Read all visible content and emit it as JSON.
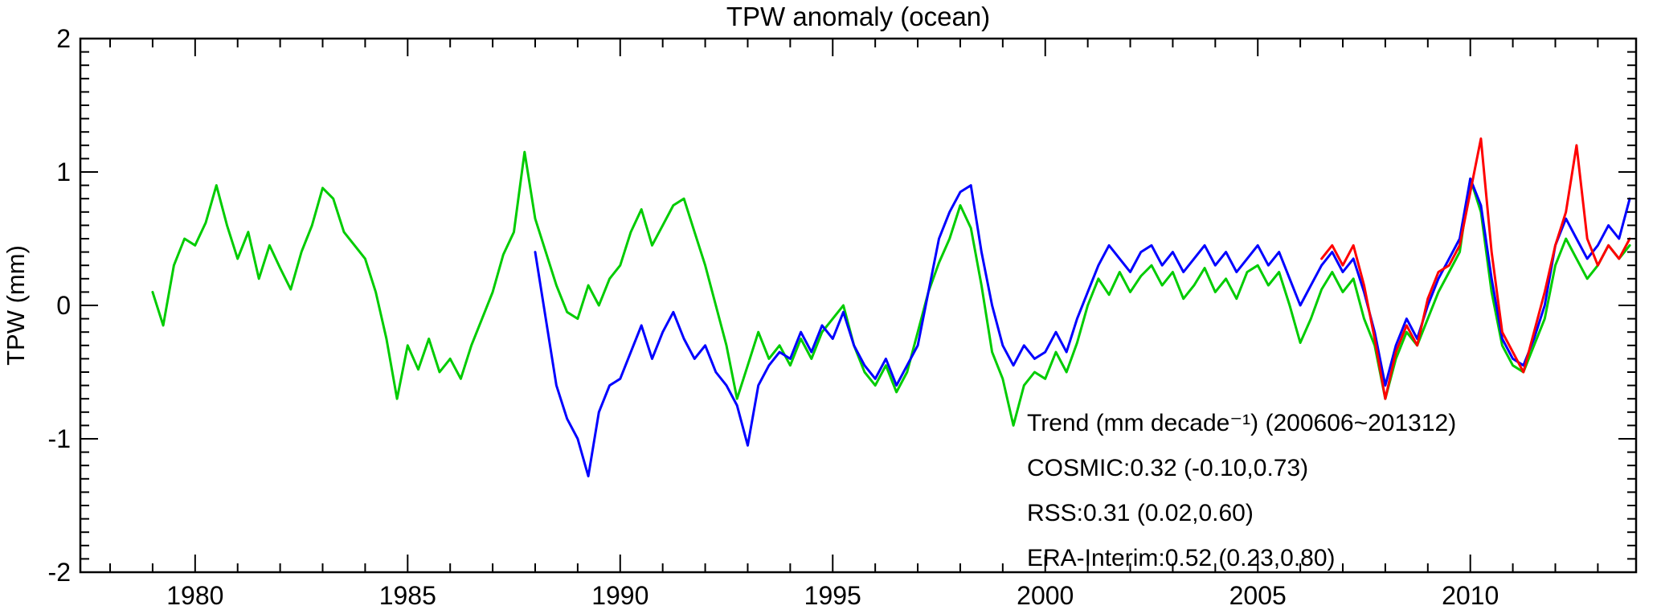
{
  "annotation": {
    "lines": [
      {
        "text": "Trend (mm decade⁻¹) (200606~201312)",
        "color": "#000000"
      },
      {
        "text": "COSMIC:0.32 (-0.10,0.73)",
        "color": "#FF0000"
      },
      {
        "text": "RSS:0.31 (0.02,0.60)",
        "color": "#0000FF"
      },
      {
        "text": "ERA-Interim:0.52 (0.23,0.80)",
        "color": "#00CC00"
      }
    ]
  },
  "chart_data": {
    "type": "line",
    "title": "TPW anomaly (ocean)",
    "xlabel": "",
    "ylabel": "TPW (mm)",
    "xlim": [
      1977.3,
      2013.9
    ],
    "ylim": [
      -2,
      2
    ],
    "grid": false,
    "x_major_ticks": [
      1980,
      1985,
      1990,
      1995,
      2000,
      2005,
      2010
    ],
    "x_minor_step": 1,
    "y_major_ticks": [
      -2,
      -1,
      0,
      1,
      2
    ],
    "y_minor_step": 0.1,
    "series": [
      {
        "name": "ERA-Interim",
        "color": "#00CC00",
        "start": 1979.0,
        "step": 0.25,
        "values": [
          0.1,
          -0.15,
          0.3,
          0.5,
          0.45,
          0.62,
          0.9,
          0.6,
          0.35,
          0.55,
          0.2,
          0.45,
          0.28,
          0.12,
          0.4,
          0.6,
          0.88,
          0.8,
          0.55,
          0.45,
          0.35,
          0.1,
          -0.25,
          -0.7,
          -0.3,
          -0.48,
          -0.25,
          -0.5,
          -0.4,
          -0.55,
          -0.3,
          -0.1,
          0.1,
          0.38,
          0.55,
          1.15,
          0.65,
          0.4,
          0.15,
          -0.05,
          -0.1,
          0.15,
          0.0,
          0.2,
          0.3,
          0.55,
          0.72,
          0.45,
          0.6,
          0.75,
          0.8,
          0.55,
          0.3,
          0.0,
          -0.3,
          -0.7,
          -0.45,
          -0.2,
          -0.4,
          -0.3,
          -0.45,
          -0.25,
          -0.4,
          -0.2,
          -0.1,
          0.0,
          -0.3,
          -0.5,
          -0.6,
          -0.45,
          -0.65,
          -0.5,
          -0.2,
          0.1,
          0.32,
          0.5,
          0.75,
          0.58,
          0.15,
          -0.35,
          -0.55,
          -0.9,
          -0.6,
          -0.5,
          -0.55,
          -0.35,
          -0.5,
          -0.28,
          0.0,
          0.2,
          0.08,
          0.25,
          0.1,
          0.22,
          0.3,
          0.15,
          0.25,
          0.05,
          0.15,
          0.28,
          0.1,
          0.2,
          0.05,
          0.25,
          0.3,
          0.15,
          0.25,
          0.0,
          -0.28,
          -0.1,
          0.12,
          0.25,
          0.1,
          0.2,
          -0.1,
          -0.3,
          -0.7,
          -0.4,
          -0.2,
          -0.3,
          -0.1,
          0.1,
          0.25,
          0.4,
          0.95,
          0.7,
          0.1,
          -0.3,
          -0.45,
          -0.5,
          -0.3,
          -0.1,
          0.3,
          0.5,
          0.35,
          0.2,
          0.3,
          0.45,
          0.35,
          0.45
        ]
      },
      {
        "name": "RSS",
        "color": "#0000FF",
        "start": 1988.0,
        "step": 0.25,
        "values": [
          0.4,
          -0.1,
          -0.6,
          -0.85,
          -1.0,
          -1.28,
          -0.8,
          -0.6,
          -0.55,
          -0.35,
          -0.15,
          -0.4,
          -0.2,
          -0.05,
          -0.25,
          -0.4,
          -0.3,
          -0.5,
          -0.6,
          -0.75,
          -1.05,
          -0.6,
          -0.45,
          -0.35,
          -0.4,
          -0.2,
          -0.35,
          -0.15,
          -0.25,
          -0.05,
          -0.3,
          -0.45,
          -0.55,
          -0.4,
          -0.6,
          -0.45,
          -0.3,
          0.1,
          0.5,
          0.7,
          0.85,
          0.9,
          0.4,
          0.0,
          -0.3,
          -0.45,
          -0.3,
          -0.4,
          -0.35,
          -0.2,
          -0.35,
          -0.1,
          0.1,
          0.3,
          0.45,
          0.35,
          0.25,
          0.4,
          0.45,
          0.3,
          0.4,
          0.25,
          0.35,
          0.45,
          0.3,
          0.4,
          0.25,
          0.35,
          0.45,
          0.3,
          0.4,
          0.2,
          0.0,
          0.15,
          0.3,
          0.4,
          0.25,
          0.35,
          0.1,
          -0.2,
          -0.6,
          -0.3,
          -0.1,
          -0.25,
          0.0,
          0.2,
          0.35,
          0.5,
          0.95,
          0.75,
          0.2,
          -0.25,
          -0.4,
          -0.45,
          -0.25,
          0.0,
          0.45,
          0.65,
          0.5,
          0.35,
          0.45,
          0.6,
          0.5,
          0.8
        ]
      },
      {
        "name": "COSMIC",
        "color": "#FF0000",
        "start": 2006.5,
        "step": 0.25,
        "values": [
          0.35,
          0.45,
          0.3,
          0.45,
          0.15,
          -0.25,
          -0.7,
          -0.35,
          -0.15,
          -0.3,
          0.05,
          0.25,
          0.3,
          0.45,
          0.85,
          1.25,
          0.4,
          -0.2,
          -0.35,
          -0.5,
          -0.2,
          0.1,
          0.45,
          0.7,
          1.2,
          0.5,
          0.3,
          0.45,
          0.35,
          0.5
        ]
      }
    ]
  }
}
